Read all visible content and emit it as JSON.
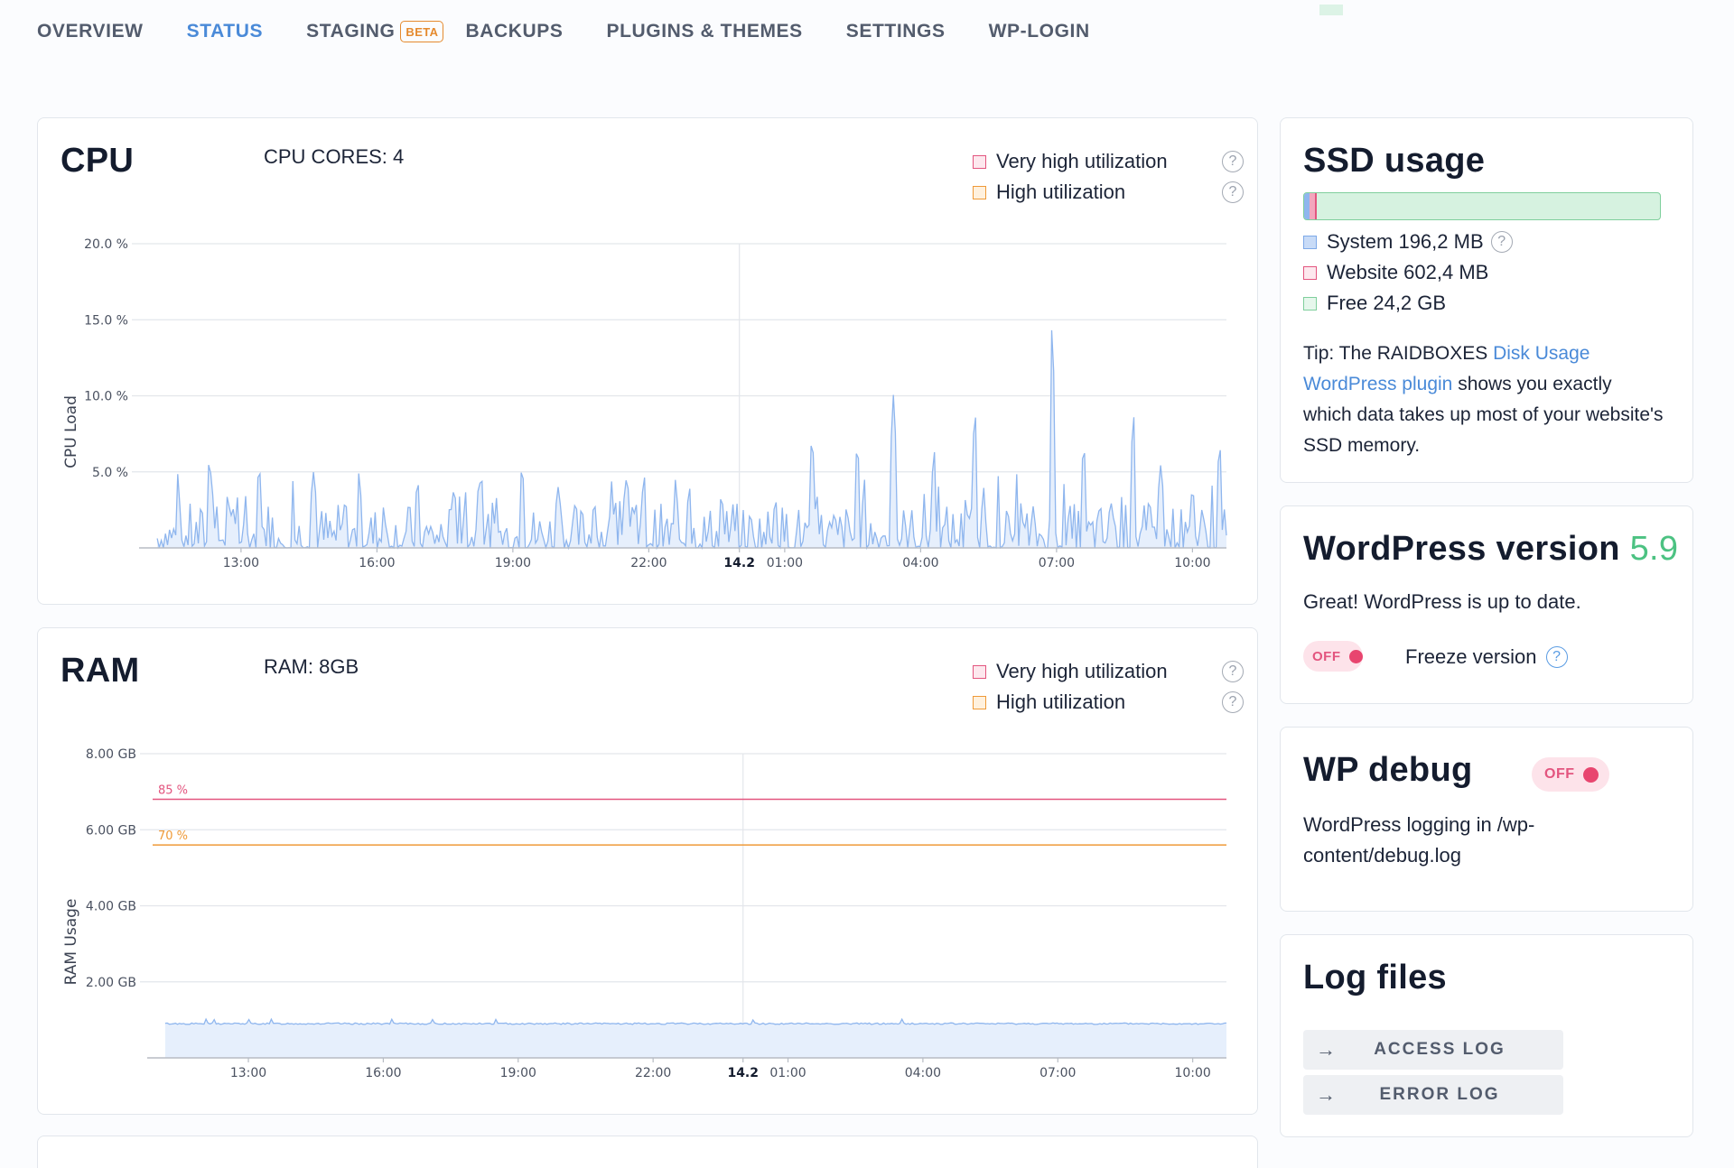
{
  "nav": {
    "items": [
      {
        "label": "OVERVIEW",
        "active": false
      },
      {
        "label": "STATUS",
        "active": true
      },
      {
        "label": "STAGING",
        "active": false,
        "badge": "BETA"
      },
      {
        "label": "BACKUPS",
        "active": false
      },
      {
        "label": "PLUGINS & THEMES",
        "active": false
      },
      {
        "label": "SETTINGS",
        "active": false
      },
      {
        "label": "WP-LOGIN",
        "active": false
      }
    ]
  },
  "cpu": {
    "title": "CPU",
    "subtitle": "CPU CORES: 4",
    "legend": [
      "Very high utilization",
      "High utilization"
    ],
    "help_glyph": "?"
  },
  "ram": {
    "title": "RAM",
    "subtitle": "RAM: 8GB",
    "legend": [
      "Very high utilization",
      "High utilization"
    ],
    "help_glyph": "?"
  },
  "chart_data": [
    {
      "type": "area",
      "title": "",
      "ylabel": "CPU Load",
      "xlabel": "",
      "ylim": [
        0,
        20
      ],
      "y_ticks": [
        "20.0 %",
        "15.0 %",
        "10.0 %",
        "5.0 %"
      ],
      "y_tick_values": [
        20,
        15,
        10,
        5
      ],
      "x_range_hours": [
        10.75,
        34.75
      ],
      "x_ticks": [
        {
          "label": "13:00",
          "hour": 13
        },
        {
          "label": "16:00",
          "hour": 16
        },
        {
          "label": "19:00",
          "hour": 19
        },
        {
          "label": "22:00",
          "hour": 22
        },
        {
          "label": "14.2",
          "hour": 24,
          "bold": true
        },
        {
          "label": "01:00",
          "hour": 25
        },
        {
          "label": "04:00",
          "hour": 28
        },
        {
          "label": "07:00",
          "hour": 31
        },
        {
          "label": "10:00",
          "hour": 34
        }
      ],
      "grid": true,
      "series": [
        {
          "color": "#8fb6ee",
          "peaks": [
            [
              12.3,
              6.0
            ],
            [
              12.7,
              3.5
            ],
            [
              13.4,
              5.5
            ],
            [
              14.6,
              5.0
            ],
            [
              15.3,
              3.2
            ],
            [
              16.9,
              4.5
            ],
            [
              17.7,
              4.0
            ],
            [
              18.3,
              5.0
            ],
            [
              19.2,
              5.5
            ],
            [
              20.0,
              4.0
            ],
            [
              20.8,
              3.0
            ],
            [
              21.5,
              4.5
            ],
            [
              21.9,
              4.8
            ],
            [
              22.9,
              4.0
            ],
            [
              23.6,
              3.5
            ],
            [
              24.8,
              3.2
            ],
            [
              25.6,
              7.5
            ],
            [
              26.6,
              7.0
            ],
            [
              27.4,
              10.2
            ],
            [
              28.3,
              6.5
            ],
            [
              29.2,
              9.3
            ],
            [
              30.9,
              15.0
            ],
            [
              31.6,
              7.0
            ],
            [
              32.7,
              9.0
            ],
            [
              33.3,
              5.5
            ],
            [
              34.0,
              4.0
            ],
            [
              34.6,
              7.0
            ]
          ]
        }
      ]
    },
    {
      "type": "area",
      "title": "",
      "ylabel": "RAM Usage",
      "xlabel": "",
      "ylim": [
        0,
        8
      ],
      "y_ticks": [
        "8.00 GB",
        "6.00 GB",
        "4.00 GB",
        "2.00 GB"
      ],
      "y_tick_values": [
        8,
        6,
        4,
        2
      ],
      "x_range_hours": [
        10.75,
        34.75
      ],
      "x_ticks": [
        {
          "label": "13:00",
          "hour": 13
        },
        {
          "label": "16:00",
          "hour": 16
        },
        {
          "label": "19:00",
          "hour": 19
        },
        {
          "label": "22:00",
          "hour": 22
        },
        {
          "label": "14.2",
          "hour": 24,
          "bold": true
        },
        {
          "label": "01:00",
          "hour": 25
        },
        {
          "label": "04:00",
          "hour": 28
        },
        {
          "label": "07:00",
          "hour": 31
        },
        {
          "label": "10:00",
          "hour": 34
        }
      ],
      "grid": true,
      "thresholds": [
        {
          "label": "85 %",
          "value": 6.8,
          "color": "#e3557f"
        },
        {
          "label": "70 %",
          "value": 5.6,
          "color": "#ef9a38"
        }
      ],
      "series": [
        {
          "color": "#8fb6ee",
          "value": 0.9
        }
      ]
    }
  ],
  "ssd": {
    "title": "SSD usage",
    "system_fraction": 0.008,
    "website_fraction": 0.024,
    "legend": [
      "System 196,2 MB",
      "Website 602,4 MB",
      "Free 24,2 GB"
    ],
    "tip_prefix": "Tip: The RAIDBOXES ",
    "tip_link": "Disk Usage WordPress plugin",
    "tip_suffix": " shows you exactly which data takes up most of your website's SSD memory.",
    "help_glyph": "?"
  },
  "wp_version": {
    "title": "WordPress version ",
    "version": "5.9",
    "message": "Great! WordPress is up to date.",
    "toggle_label": "OFF",
    "freeze_label": "Freeze version",
    "help_glyph": "?"
  },
  "wp_debug": {
    "title": "WP debug",
    "toggle_label": "OFF",
    "message": "WordPress logging in /wp-content/debug.log"
  },
  "log_files": {
    "title": "Log files",
    "buttons": [
      "ACCESS LOG",
      "ERROR LOG"
    ],
    "arrow_glyph": "→"
  },
  "colors": {
    "accent": "#4a8ad8",
    "danger": "#e3557f",
    "warning": "#ef9a38",
    "success": "#4cc282"
  }
}
